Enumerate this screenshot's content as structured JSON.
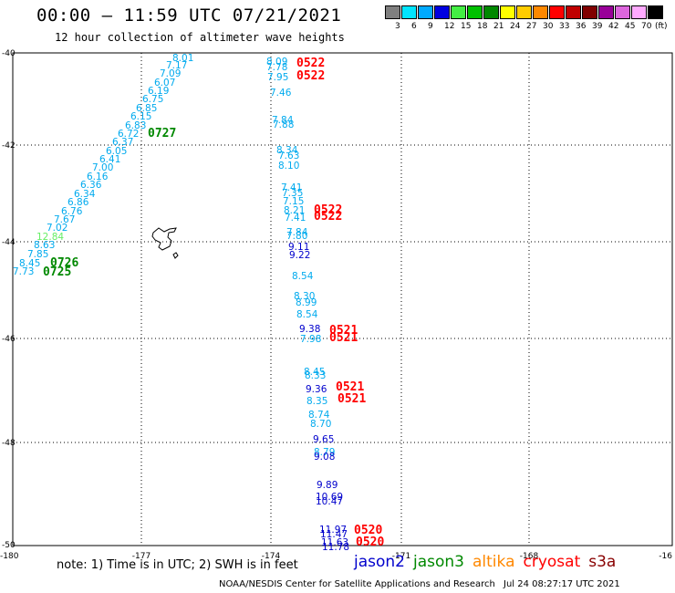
{
  "header": {
    "title": "00:00 – 11:59 UTC 07/21/2021",
    "subtitle": "12 hour collection of altimeter wave heights"
  },
  "color_scale": {
    "unit": "(ft)",
    "bins": [
      {
        "label": "3",
        "color": "#7f7f7f"
      },
      {
        "label": "6",
        "color": "#00e5ff"
      },
      {
        "label": "9",
        "color": "#00aaff"
      },
      {
        "label": "12",
        "color": "#0000e0"
      },
      {
        "label": "15",
        "color": "#44ee44"
      },
      {
        "label": "18",
        "color": "#00c000"
      },
      {
        "label": "21",
        "color": "#008800"
      },
      {
        "label": "24",
        "color": "#ffff00"
      },
      {
        "label": "27",
        "color": "#ffcc00"
      },
      {
        "label": "30",
        "color": "#ff8800"
      },
      {
        "label": "33",
        "color": "#ff0000"
      },
      {
        "label": "36",
        "color": "#c00000"
      },
      {
        "label": "39",
        "color": "#800000"
      },
      {
        "label": "42",
        "color": "#990099"
      },
      {
        "label": "45",
        "color": "#dd66dd"
      },
      {
        "label": "70",
        "color": "#ffaaff"
      },
      {
        "label": "",
        "color": "#000000"
      }
    ]
  },
  "axes": {
    "lat_labels": [
      "-40",
      "-42",
      "-44",
      "-46",
      "-48",
      "-50"
    ],
    "lon_labels": [
      "-180",
      "-177",
      "-174",
      "-171",
      "-168",
      "-16"
    ]
  },
  "pass_times": [
    {
      "text": "0727",
      "color": "#008800"
    },
    {
      "text": "0726",
      "color": "#008800"
    },
    {
      "text": "0725",
      "color": "#008800"
    },
    {
      "text": "0522",
      "color": "#ff0000"
    },
    {
      "text": "0522",
      "color": "#ff0000"
    },
    {
      "text": "0522",
      "color": "#ff0000"
    },
    {
      "text": "0522",
      "color": "#ff0000"
    },
    {
      "text": "0521",
      "color": "#ff0000"
    },
    {
      "text": "0521",
      "color": "#ff0000"
    },
    {
      "text": "0521",
      "color": "#ff0000"
    },
    {
      "text": "0521",
      "color": "#ff0000"
    },
    {
      "text": "0520",
      "color": "#ff0000"
    },
    {
      "text": "0520",
      "color": "#ff0000"
    }
  ],
  "track_west": [
    "8.01",
    "7.17",
    "7.09",
    "6.07",
    "6.19",
    "6.75",
    "6.85",
    "6.15",
    "6.83",
    "6.72",
    "6.37",
    "6.05",
    "6.41",
    "7.00",
    "6.16",
    "6.36",
    "6.34",
    "6.86",
    "6.76",
    "7.67",
    "7.02",
    "12.84",
    "8.63",
    "7.85",
    "8.45",
    "7.73"
  ],
  "track_central": [
    "8.09",
    "7.78",
    "7.95",
    "7.46",
    "7.84",
    "7.88",
    "8.34",
    "7.63",
    "8.10",
    "7.41",
    "7.35",
    "7.15",
    "8.21",
    "7.41",
    "7.84",
    "7.80",
    "9.11",
    "9.22",
    "8.54",
    "8.30",
    "8.99",
    "8.54",
    "9.38",
    "7.98",
    "8.45",
    "8.33",
    "9.36",
    "8.35",
    "8.74",
    "8.70",
    "9.65",
    "8.79",
    "9.08",
    "9.89",
    "10.69",
    "10.47",
    "11.97",
    "11.47",
    "11.63",
    "11.78"
  ],
  "footer": {
    "note": "note:  1) Time is in UTC;  2) SWH is in feet",
    "credit": "NOAA/NESDIS Center for Satellite Applications and Research",
    "timestamp": "Jul 24 08:27:17 UTC 2021"
  },
  "satellites": [
    {
      "name": "jason2",
      "color": "#0000cc"
    },
    {
      "name": "jason3",
      "color": "#008800"
    },
    {
      "name": "altika",
      "color": "#ff8800"
    },
    {
      "name": "cryosat",
      "color": "#ff0000"
    },
    {
      "name": "s3a",
      "color": "#880000"
    }
  ]
}
